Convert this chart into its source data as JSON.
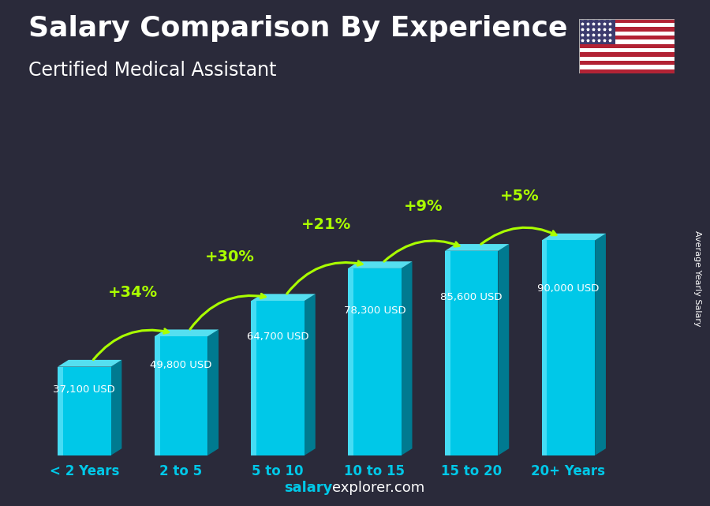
{
  "title": "Salary Comparison By Experience",
  "subtitle": "Certified Medical Assistant",
  "categories": [
    "< 2 Years",
    "2 to 5",
    "5 to 10",
    "10 to 15",
    "15 to 20",
    "20+ Years"
  ],
  "values": [
    37100,
    49800,
    64700,
    78300,
    85600,
    90000
  ],
  "salary_labels": [
    "37,100 USD",
    "49,800 USD",
    "64,700 USD",
    "78,300 USD",
    "85,600 USD",
    "90,000 USD"
  ],
  "pct_labels": [
    "+34%",
    "+30%",
    "+21%",
    "+9%",
    "+5%"
  ],
  "bar_color_face": "#00C8E8",
  "bar_color_light": "#55DFF0",
  "bar_color_dark": "#007A90",
  "bg_color": "#2a2a3a",
  "title_color": "#ffffff",
  "subtitle_color": "#ffffff",
  "salary_label_color": "#ffffff",
  "pct_color": "#aaff00",
  "xlabel_color": "#00C8E8",
  "footer_bold_color": "#00C8E8",
  "footer_normal_color": "#ffffff",
  "ylabel_text": "Average Yearly Salary",
  "footer_bold": "salary",
  "footer_normal": "explorer.com",
  "title_fontsize": 26,
  "subtitle_fontsize": 17,
  "cat_fontsize": 12,
  "salary_fontsize": 9.5,
  "pct_fontsize": 14,
  "footer_fontsize": 13,
  "ylabel_fontsize": 8
}
